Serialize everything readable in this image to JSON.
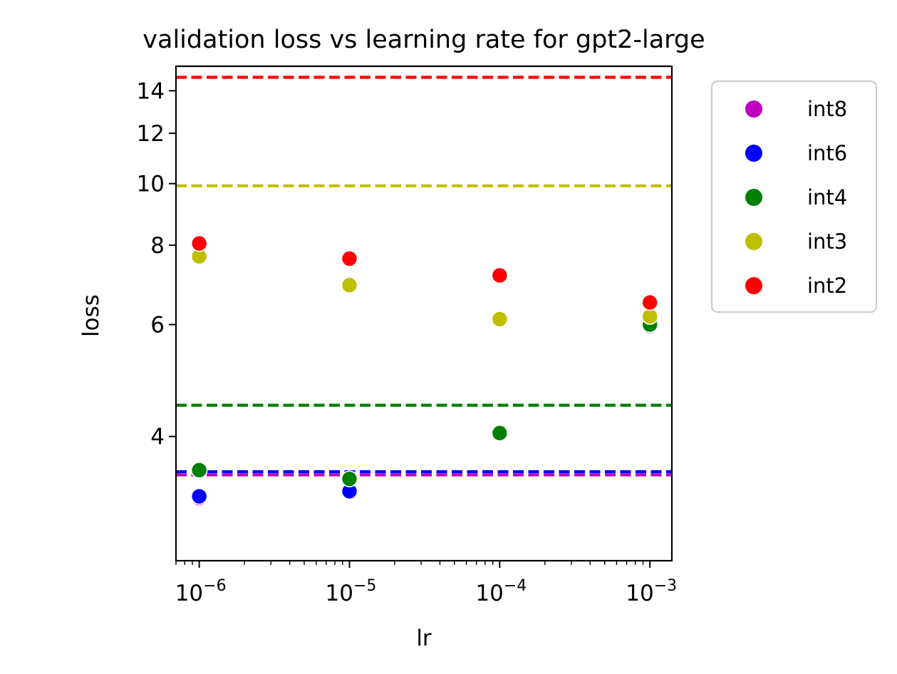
{
  "chart_data": {
    "type": "scatter",
    "title": "validation loss vs learning rate for gpt2-large",
    "xlabel": "lr",
    "ylabel": "loss",
    "xscale": "log",
    "yscale": "log",
    "xlim": [
      7e-07,
      0.0014
    ],
    "ylim": [
      2.55,
      15.3
    ],
    "x": [
      1e-06,
      1e-05,
      0.0001,
      0.001
    ],
    "x_ticks": [
      {
        "value": 1e-06,
        "base": "10",
        "exp": "−6"
      },
      {
        "value": 1e-05,
        "base": "10",
        "exp": "−5"
      },
      {
        "value": 0.0001,
        "base": "10",
        "exp": "−4"
      },
      {
        "value": 0.001,
        "base": "10",
        "exp": "−3"
      }
    ],
    "y_ticks": [
      {
        "value": 4,
        "label": "4"
      },
      {
        "value": 6,
        "label": "6"
      },
      {
        "value": 8,
        "label": "8"
      },
      {
        "value": 10,
        "label": "10"
      },
      {
        "value": 12,
        "label": "12"
      },
      {
        "value": 14,
        "label": "14"
      }
    ],
    "series": [
      {
        "name": "int8",
        "color": "#bf00bf",
        "values": [
          3.2,
          3.27,
          null,
          5.95
        ],
        "baseline": 3.48
      },
      {
        "name": "int6",
        "color": "#0000ff",
        "values": [
          3.22,
          3.28,
          null,
          5.97
        ],
        "baseline": 3.52
      },
      {
        "name": "int4",
        "color": "#008000",
        "values": [
          3.54,
          3.43,
          4.05,
          6.0
        ],
        "baseline": 4.48
      },
      {
        "name": "int3",
        "color": "#bfbf00",
        "values": [
          7.68,
          6.92,
          6.12,
          6.18
        ],
        "baseline": 9.92
      },
      {
        "name": "int2",
        "color": "#ff0000",
        "values": [
          8.05,
          7.62,
          7.17,
          6.5
        ],
        "baseline": 14.7
      }
    ],
    "legend": "outside-top-right"
  }
}
